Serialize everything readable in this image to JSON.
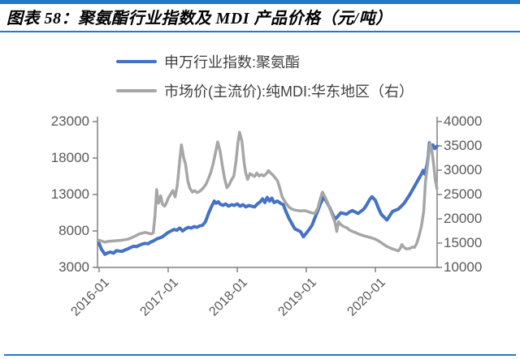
{
  "page": {
    "background": "#FFFFFF",
    "accent_blue": "#2478C8"
  },
  "header": {
    "title": "图表 58：聚氨酯行业指数及 MDI 产品价格（元/吨）"
  },
  "legend": {
    "items": [
      {
        "label": "申万行业指数:聚氨酯",
        "color": "#4472C4"
      },
      {
        "label": "市场价(主流价):纯MDI:华东地区（右）",
        "color": "#A6A6A6"
      }
    ]
  },
  "chart_data": {
    "type": "line",
    "title": "图表 58：聚氨酯行业指数及 MDI 产品价格（元/吨）",
    "grid": false,
    "legend_position": "top",
    "axis_color": "#808080",
    "label_color": "#595959",
    "x_axis": {
      "unit": "months since 2016-01",
      "domain": [
        0,
        58.7
      ],
      "tick_months": [
        0,
        12,
        24,
        36,
        48
      ],
      "tick_labels": [
        "2016-01",
        "2017-01",
        "2018-01",
        "2019-01",
        "2020-01"
      ]
    },
    "left_axis": {
      "min": 3000,
      "max": 23000,
      "ticks": [
        23000,
        18000,
        13000,
        8000,
        3000
      ]
    },
    "right_axis": {
      "min": 10000,
      "max": 40000,
      "ticks": [
        40000,
        35000,
        30000,
        25000,
        20000,
        15000,
        10000
      ]
    },
    "series": [
      {
        "name": "申万行业指数:聚氨酯",
        "axis": "left",
        "color": "#4472C4",
        "line_width": 4,
        "points": [
          [
            0,
            6300
          ],
          [
            0.4,
            5500
          ],
          [
            1,
            4800
          ],
          [
            1.5,
            5000
          ],
          [
            2,
            5100
          ],
          [
            2.5,
            4950
          ],
          [
            3,
            5300
          ],
          [
            3.5,
            5250
          ],
          [
            4,
            5200
          ],
          [
            4.5,
            5400
          ],
          [
            5,
            5550
          ],
          [
            5.5,
            5750
          ],
          [
            6,
            5900
          ],
          [
            6.5,
            5850
          ],
          [
            7,
            6050
          ],
          [
            7.5,
            6200
          ],
          [
            8,
            6300
          ],
          [
            8.5,
            6250
          ],
          [
            9,
            6500
          ],
          [
            9.5,
            6650
          ],
          [
            10,
            6900
          ],
          [
            10.5,
            7050
          ],
          [
            11,
            7200
          ],
          [
            11.5,
            7500
          ],
          [
            12,
            7800
          ],
          [
            12.5,
            8000
          ],
          [
            13,
            8200
          ],
          [
            13.5,
            8100
          ],
          [
            14,
            8400
          ],
          [
            14.5,
            8000
          ],
          [
            15,
            8300
          ],
          [
            15.5,
            8500
          ],
          [
            16,
            8400
          ],
          [
            16.5,
            8600
          ],
          [
            17,
            8500
          ],
          [
            17.5,
            8700
          ],
          [
            18,
            8800
          ],
          [
            18.5,
            9300
          ],
          [
            19,
            10400
          ],
          [
            19.5,
            11300
          ],
          [
            20,
            12100
          ],
          [
            20.3,
            11800
          ],
          [
            20.7,
            12000
          ],
          [
            21,
            11700
          ],
          [
            21.5,
            11500
          ],
          [
            22,
            11700
          ],
          [
            22.5,
            11400
          ],
          [
            23,
            11600
          ],
          [
            23.5,
            11500
          ],
          [
            24,
            11700
          ],
          [
            24.5,
            11400
          ],
          [
            25,
            11600
          ],
          [
            25.5,
            11300
          ],
          [
            26,
            11500
          ],
          [
            26.5,
            11400
          ],
          [
            27,
            11300
          ],
          [
            27.5,
            11700
          ],
          [
            28,
            12000
          ],
          [
            28.4,
            12400
          ],
          [
            28.8,
            11900
          ],
          [
            29.2,
            12600
          ],
          [
            29.6,
            12100
          ],
          [
            30,
            12500
          ],
          [
            30.4,
            11900
          ],
          [
            31,
            12100
          ],
          [
            31.5,
            11800
          ],
          [
            32,
            11600
          ],
          [
            32.5,
            10600
          ],
          [
            33,
            9700
          ],
          [
            33.5,
            9000
          ],
          [
            34,
            8300
          ],
          [
            34.5,
            8100
          ],
          [
            35,
            7900
          ],
          [
            35.5,
            7200
          ],
          [
            36,
            7700
          ],
          [
            36.5,
            8200
          ],
          [
            37,
            8800
          ],
          [
            37.5,
            9800
          ],
          [
            38,
            10800
          ],
          [
            38.5,
            11800
          ],
          [
            39,
            12600
          ],
          [
            39.4,
            12200
          ],
          [
            40,
            11300
          ],
          [
            40.5,
            10400
          ],
          [
            41,
            9600
          ],
          [
            41.5,
            10050
          ],
          [
            42,
            10500
          ],
          [
            42.5,
            10400
          ],
          [
            43,
            10300
          ],
          [
            43.5,
            10600
          ],
          [
            44,
            10800
          ],
          [
            44.5,
            10600
          ],
          [
            45,
            10400
          ],
          [
            45.5,
            10700
          ],
          [
            46,
            11000
          ],
          [
            46.5,
            11600
          ],
          [
            47,
            12300
          ],
          [
            47.4,
            12700
          ],
          [
            48,
            12200
          ],
          [
            48.5,
            11200
          ],
          [
            49,
            10300
          ],
          [
            49.5,
            9900
          ],
          [
            50,
            9500
          ],
          [
            50.5,
            10100
          ],
          [
            51,
            10700
          ],
          [
            51.5,
            10850
          ],
          [
            52,
            11000
          ],
          [
            52.5,
            11400
          ],
          [
            53,
            11800
          ],
          [
            53.5,
            12400
          ],
          [
            54,
            13000
          ],
          [
            54.5,
            13700
          ],
          [
            55,
            14400
          ],
          [
            55.5,
            15100
          ],
          [
            56,
            15800
          ],
          [
            56.3,
            16300
          ],
          [
            56.6,
            15800
          ],
          [
            57,
            17200
          ],
          [
            57.2,
            18300
          ],
          [
            57.4,
            20100
          ],
          [
            57.7,
            19100
          ],
          [
            58,
            19800
          ],
          [
            58.3,
            19300
          ],
          [
            58.7,
            19600
          ]
        ]
      },
      {
        "name": "市场价(主流价):纯MDI:华东地区（右）",
        "axis": "right",
        "color": "#A6A6A6",
        "line_width": 3.5,
        "points": [
          [
            0,
            15600
          ],
          [
            0.5,
            15400
          ],
          [
            1,
            15200
          ],
          [
            1.5,
            15350
          ],
          [
            2,
            15400
          ],
          [
            2.5,
            15450
          ],
          [
            3,
            15500
          ],
          [
            3.5,
            15550
          ],
          [
            4,
            15600
          ],
          [
            4.5,
            15700
          ],
          [
            5,
            15800
          ],
          [
            5.5,
            16050
          ],
          [
            6,
            16300
          ],
          [
            6.5,
            16600
          ],
          [
            7,
            16900
          ],
          [
            7.5,
            17050
          ],
          [
            8,
            17200
          ],
          [
            8.5,
            17050
          ],
          [
            9,
            16900
          ],
          [
            9.4,
            17100
          ],
          [
            9.7,
            20500
          ],
          [
            10,
            26000
          ],
          [
            10.3,
            23200
          ],
          [
            10.7,
            24700
          ],
          [
            11,
            23000
          ],
          [
            11.4,
            22600
          ],
          [
            11.7,
            23300
          ],
          [
            12,
            24200
          ],
          [
            12.4,
            25000
          ],
          [
            12.8,
            25800
          ],
          [
            13.2,
            24500
          ],
          [
            13.6,
            27000
          ],
          [
            14,
            32000
          ],
          [
            14.3,
            35200
          ],
          [
            14.7,
            32500
          ],
          [
            15,
            31300
          ],
          [
            15.4,
            27800
          ],
          [
            15.8,
            26200
          ],
          [
            16.2,
            25500
          ],
          [
            16.6,
            25800
          ],
          [
            17,
            25400
          ],
          [
            17.4,
            25600
          ],
          [
            17.8,
            26000
          ],
          [
            18.2,
            26500
          ],
          [
            18.6,
            27200
          ],
          [
            19,
            28300
          ],
          [
            19.4,
            29500
          ],
          [
            19.8,
            31300
          ],
          [
            20.2,
            33500
          ],
          [
            20.6,
            35800
          ],
          [
            21,
            34000
          ],
          [
            21.4,
            31000
          ],
          [
            21.8,
            28300
          ],
          [
            22.2,
            26400
          ],
          [
            22.6,
            27000
          ],
          [
            23,
            28000
          ],
          [
            23.4,
            28800
          ],
          [
            23.8,
            32000
          ],
          [
            24.1,
            35500
          ],
          [
            24.4,
            37800
          ],
          [
            24.8,
            36000
          ],
          [
            25.2,
            31500
          ],
          [
            25.5,
            29300
          ],
          [
            25.8,
            28100
          ],
          [
            26.2,
            29300
          ],
          [
            26.6,
            29000
          ],
          [
            27,
            28700
          ],
          [
            27.4,
            29400
          ],
          [
            27.8,
            28800
          ],
          [
            28.2,
            29100
          ],
          [
            28.6,
            28800
          ],
          [
            29,
            29200
          ],
          [
            29.4,
            29900
          ],
          [
            29.8,
            29400
          ],
          [
            30.2,
            29000
          ],
          [
            30.6,
            28400
          ],
          [
            31,
            27800
          ],
          [
            31.4,
            26300
          ],
          [
            31.8,
            24500
          ],
          [
            32.2,
            23700
          ],
          [
            32.6,
            23000
          ],
          [
            33,
            22400
          ],
          [
            33.5,
            22000
          ],
          [
            34,
            21800
          ],
          [
            34.5,
            21700
          ],
          [
            35,
            21600
          ],
          [
            35.5,
            21700
          ],
          [
            36,
            21600
          ],
          [
            36.5,
            21400
          ],
          [
            37,
            21200
          ],
          [
            37.5,
            21100
          ],
          [
            38,
            22200
          ],
          [
            38.4,
            24000
          ],
          [
            38.8,
            25500
          ],
          [
            39.2,
            24600
          ],
          [
            39.6,
            23600
          ],
          [
            40,
            22400
          ],
          [
            40.5,
            20800
          ],
          [
            41,
            19200
          ],
          [
            41.3,
            17400
          ],
          [
            41.6,
            19400
          ],
          [
            42,
            18800
          ],
          [
            42.5,
            18400
          ],
          [
            43,
            18200
          ],
          [
            43.5,
            17700
          ],
          [
            44,
            17400
          ],
          [
            44.5,
            17200
          ],
          [
            45,
            16900
          ],
          [
            45.5,
            16700
          ],
          [
            46,
            16500
          ],
          [
            46.5,
            16350
          ],
          [
            47,
            16200
          ],
          [
            47.5,
            16000
          ],
          [
            48,
            15800
          ],
          [
            48.5,
            15500
          ],
          [
            49,
            15100
          ],
          [
            49.5,
            14700
          ],
          [
            50,
            14300
          ],
          [
            50.5,
            14050
          ],
          [
            51,
            13800
          ],
          [
            51.5,
            13600
          ],
          [
            52,
            13400
          ],
          [
            52.3,
            13900
          ],
          [
            52.6,
            14700
          ],
          [
            53,
            14100
          ],
          [
            53.4,
            13800
          ],
          [
            54,
            13900
          ],
          [
            54.4,
            14200
          ],
          [
            54.8,
            14100
          ],
          [
            55.2,
            15000
          ],
          [
            55.6,
            16500
          ],
          [
            56,
            18500
          ],
          [
            56.4,
            21500
          ],
          [
            56.7,
            27500
          ],
          [
            57,
            30500
          ],
          [
            57.3,
            33500
          ],
          [
            57.5,
            35500
          ],
          [
            57.8,
            34200
          ],
          [
            58,
            32500
          ],
          [
            58.2,
            30300
          ],
          [
            58.4,
            28000
          ],
          [
            58.7,
            26200
          ]
        ]
      }
    ]
  }
}
